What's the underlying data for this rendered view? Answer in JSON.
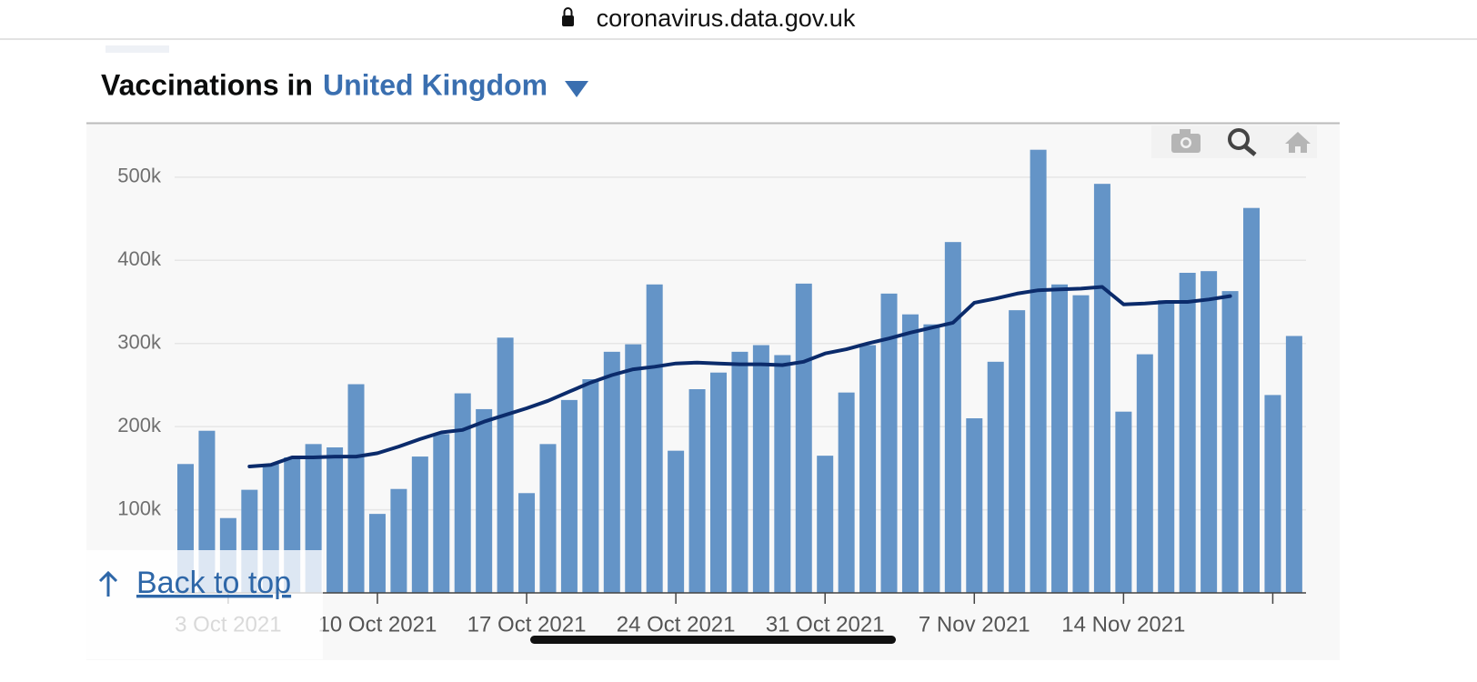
{
  "url": "coronavirus.data.gov.uk",
  "heading": {
    "prefix": "Vaccinations in",
    "area": "United Kingdom"
  },
  "back_to_top": "Back to top",
  "chart_data": {
    "type": "bar",
    "x": [
      "2021-10-01",
      "2021-10-02",
      "2021-10-03",
      "2021-10-04",
      "2021-10-05",
      "2021-10-06",
      "2021-10-07",
      "2021-10-08",
      "2021-10-09",
      "2021-10-10",
      "2021-10-11",
      "2021-10-12",
      "2021-10-13",
      "2021-10-14",
      "2021-10-15",
      "2021-10-16",
      "2021-10-17",
      "2021-10-18",
      "2021-10-19",
      "2021-10-20",
      "2021-10-21",
      "2021-10-22",
      "2021-10-23",
      "2021-10-24",
      "2021-10-25",
      "2021-10-26",
      "2021-10-27",
      "2021-10-28",
      "2021-10-29",
      "2021-10-30",
      "2021-10-31",
      "2021-11-01",
      "2021-11-02",
      "2021-11-03",
      "2021-11-04",
      "2021-11-05",
      "2021-11-06",
      "2021-11-07",
      "2021-11-08",
      "2021-11-09",
      "2021-11-10",
      "2021-11-11",
      "2021-11-12",
      "2021-11-13",
      "2021-11-14",
      "2021-11-15",
      "2021-11-16",
      "2021-11-17",
      "2021-11-18",
      "2021-11-19",
      "2021-11-20",
      "2021-11-21",
      "2021-11-22"
    ],
    "series": [
      {
        "type": "bar",
        "color": "#6494c7",
        "values": [
          155000,
          195000,
          90000,
          124000,
          155000,
          163000,
          179000,
          175000,
          251000,
          95000,
          125000,
          164000,
          191000,
          240000,
          221000,
          307000,
          120000,
          179000,
          232000,
          257000,
          290000,
          299000,
          371000,
          171000,
          245000,
          265000,
          290000,
          298000,
          286000,
          372000,
          165000,
          241000,
          298000,
          360000,
          335000,
          323000,
          422000,
          210000,
          278000,
          340000,
          533000,
          371000,
          358000,
          492000,
          218000,
          287000,
          352000,
          385000,
          387000,
          363000,
          463000,
          238000,
          309000
        ]
      },
      {
        "type": "line",
        "color": "#0b2b6b",
        "values": [
          null,
          null,
          null,
          152000,
          154000,
          163000,
          163000,
          164000,
          164000,
          168000,
          176000,
          185000,
          193000,
          196000,
          206000,
          214000,
          222000,
          231000,
          242000,
          253000,
          262000,
          269000,
          272000,
          276000,
          277000,
          276000,
          275000,
          275000,
          274000,
          278000,
          288000,
          293000,
          300000,
          306000,
          313000,
          319000,
          325000,
          349000,
          354000,
          360000,
          364000,
          365000,
          366000,
          368000,
          347000,
          348000,
          350000,
          350000,
          353000,
          357000,
          null,
          null,
          null
        ]
      }
    ],
    "ylim": [
      0,
      560000
    ],
    "yticks": [
      {
        "value": 100000,
        "label": "100k"
      },
      {
        "value": 200000,
        "label": "200k"
      },
      {
        "value": 300000,
        "label": "300k"
      },
      {
        "value": 400000,
        "label": "400k"
      },
      {
        "value": 500000,
        "label": "500k"
      }
    ],
    "xticks": [
      {
        "value": "2021-10-03",
        "label": "3 Oct 2021"
      },
      {
        "value": "2021-10-10",
        "label": "10 Oct 2021"
      },
      {
        "value": "2021-10-17",
        "label": "17 Oct 2021"
      },
      {
        "value": "2021-10-24",
        "label": "24 Oct 2021"
      },
      {
        "value": "2021-10-31",
        "label": "31 Oct 2021"
      },
      {
        "value": "2021-11-07",
        "label": "7 Nov 2021"
      },
      {
        "value": "2021-11-14",
        "label": "14 Nov 2021"
      },
      {
        "value": "2021-11-21"
      }
    ],
    "grid": true
  }
}
